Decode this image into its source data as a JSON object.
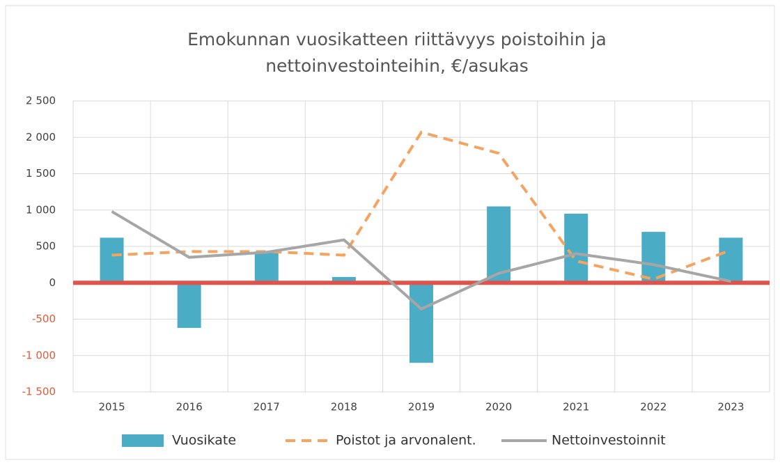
{
  "chart_data": {
    "type": "bar_line",
    "title": [
      "Emokunnan vuosikatteen riittävyys poistoihin ja",
      "nettoinvestointeihin, €/asukas"
    ],
    "categories": [
      "2015",
      "2016",
      "2017",
      "2018",
      "2019",
      "2020",
      "2021",
      "2022",
      "2023"
    ],
    "series": [
      {
        "name": "Vuosikate",
        "type": "bar",
        "color": "#4bacc6",
        "values": [
          620,
          -620,
          420,
          80,
          -1100,
          1050,
          950,
          700,
          620
        ]
      },
      {
        "name": "Poistot ja arvonalent.",
        "type": "line",
        "dashed": true,
        "color": "#f4a460",
        "values": [
          380,
          430,
          430,
          380,
          2070,
          1780,
          300,
          50,
          450
        ]
      },
      {
        "name": "Nettoinvestoinnit",
        "type": "line",
        "dashed": false,
        "color": "#a6a6a6",
        "values": [
          980,
          350,
          420,
          590,
          -360,
          130,
          400,
          250,
          20
        ]
      }
    ],
    "ylim": [
      -1500,
      2500
    ],
    "yticks": [
      {
        "value": -1500,
        "label": "-1 500"
      },
      {
        "value": -1000,
        "label": "-1 000"
      },
      -500,
      0,
      500,
      {
        "value": 1000,
        "label": "1 000"
      },
      {
        "value": 1500,
        "label": "1 500"
      },
      {
        "value": 2000,
        "label": "2 000"
      },
      {
        "value": 2500,
        "label": "2 500"
      }
    ],
    "negative_tick_color": "#e05a3a",
    "zero_line_color": "#e0524a",
    "grid": true,
    "legend": "bottom"
  }
}
